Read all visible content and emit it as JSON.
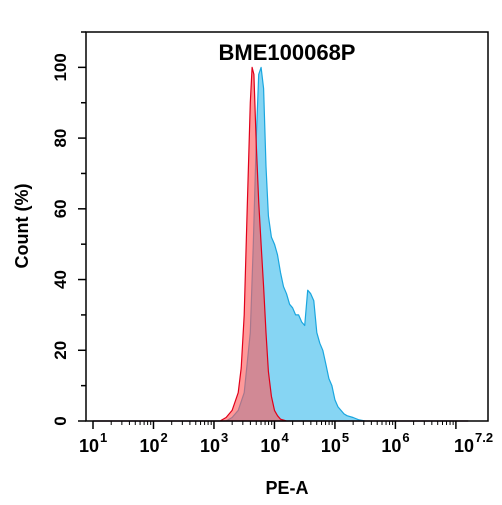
{
  "chart_data": {
    "type": "area",
    "title": "BME100068P",
    "xlabel": "PE-A",
    "ylabel": "Count (%)",
    "x_scale": "log10",
    "xlim": [
      1,
      7.2
    ],
    "ylim": [
      0,
      110
    ],
    "x_ticks": [
      {
        "base": "10",
        "exp": "1",
        "value": 1
      },
      {
        "base": "10",
        "exp": "2",
        "value": 2
      },
      {
        "base": "10",
        "exp": "3",
        "value": 3
      },
      {
        "base": "10",
        "exp": "4",
        "value": 4
      },
      {
        "base": "10",
        "exp": "5",
        "value": 5
      },
      {
        "base": "10",
        "exp": "6",
        "value": 6
      },
      {
        "base": "10",
        "exp": "7.2",
        "value": 7.2
      }
    ],
    "y_ticks": [
      "0",
      "20",
      "40",
      "60",
      "80",
      "100"
    ],
    "y_tick_values": [
      0,
      20,
      40,
      60,
      80,
      100
    ],
    "grid": false,
    "series": [
      {
        "color": "#7fd3f2",
        "stroke": "#1aa6df",
        "x_log10": [
          1.0,
          3.2,
          3.3,
          3.4,
          3.5,
          3.6,
          3.65,
          3.7,
          3.74,
          3.78,
          3.82,
          3.86,
          3.9,
          3.95,
          4.0,
          4.05,
          4.1,
          4.15,
          4.2,
          4.25,
          4.3,
          4.35,
          4.4,
          4.45,
          4.5,
          4.55,
          4.6,
          4.65,
          4.7,
          4.75,
          4.8,
          4.85,
          4.9,
          4.95,
          5.0,
          5.05,
          5.1,
          5.15,
          5.2,
          5.3,
          5.4,
          5.5,
          7.2
        ],
        "values": [
          0,
          0,
          1,
          3,
          8,
          25,
          50,
          80,
          98,
          100,
          94,
          72,
          58,
          52,
          50,
          47,
          42,
          38,
          36,
          33,
          32,
          30,
          30,
          28,
          27,
          37,
          36,
          34,
          25,
          22,
          20,
          16,
          12,
          10,
          6,
          4,
          3,
          2,
          1.5,
          1,
          0.3,
          0,
          0
        ]
      },
      {
        "color": "#ff5a5a",
        "stroke": "#e0001a",
        "x_log10": [
          1.0,
          3.1,
          3.2,
          3.3,
          3.4,
          3.45,
          3.5,
          3.55,
          3.6,
          3.63,
          3.66,
          3.7,
          3.74,
          3.78,
          3.82,
          3.86,
          3.9,
          3.95,
          4.0,
          4.05,
          4.1,
          4.2,
          7.2
        ],
        "values": [
          0,
          0,
          1,
          3,
          8,
          15,
          30,
          60,
          90,
          100,
          98,
          78,
          62,
          50,
          38,
          25,
          14,
          7,
          3,
          1.5,
          0.5,
          0,
          0
        ]
      }
    ]
  }
}
